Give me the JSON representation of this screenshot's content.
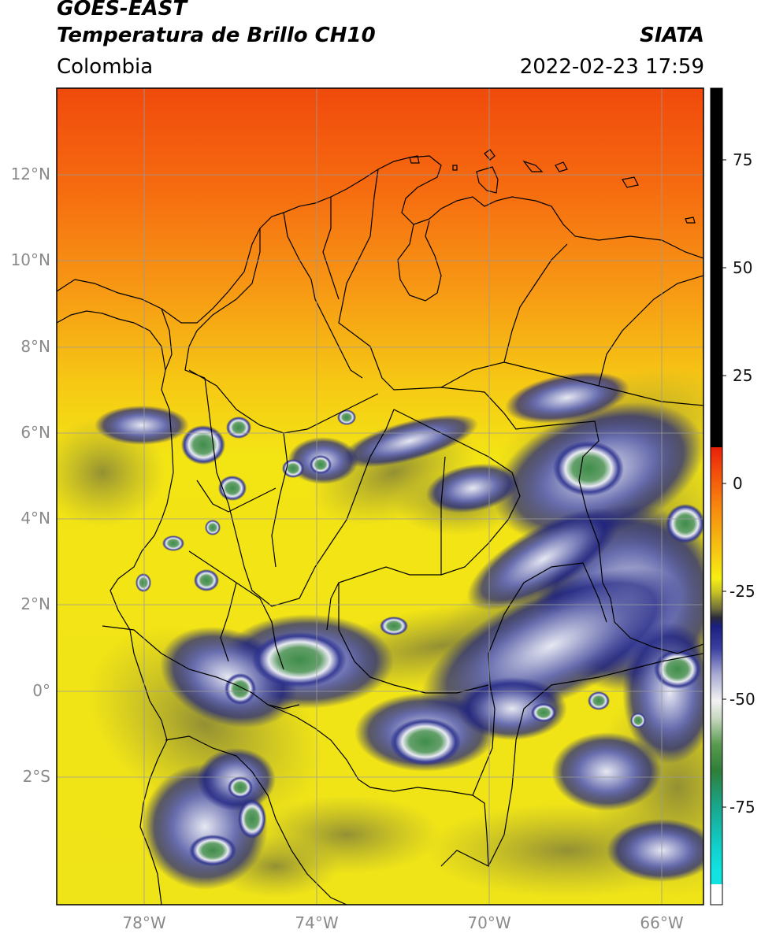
{
  "header": {
    "satellite": "GOES-EAST",
    "product": "Temperatura de Brillo CH10",
    "region": "Colombia",
    "source": "SIATA",
    "datetime": "2022-02-23 17:59"
  },
  "axes": {
    "lat_labels": [
      "12°N",
      "10°N",
      "8°N",
      "6°N",
      "4°N",
      "2°N",
      "0°",
      "2°S"
    ],
    "lon_labels": [
      "78°W",
      "74°W",
      "70°W",
      "66°W"
    ]
  },
  "colorbar": {
    "ticks": [
      "75",
      "50",
      "25",
      "0",
      "-25",
      "-50",
      "-75"
    ],
    "colors": {
      "black": "#000000",
      "red": "#e8200a",
      "orange": "#f78a10",
      "yellow": "#f6ee12",
      "olive": "#9c9a3a",
      "navy": "#1b1f80",
      "white": "#f2f2f2",
      "green": "#3b8a3c",
      "teal": "#1aa58a",
      "cyan": "#11e3e0"
    }
  },
  "colors": {
    "sea_top": "#f2540f",
    "sea_mid": "#f79a14",
    "land_warm": "#f4e214",
    "cloud_deep": "#1b1f80",
    "cloud_cold": "#e9e9f4",
    "cloud_core": "#3f8d4a",
    "border": "#000000",
    "grid": "#9a9a9a"
  }
}
